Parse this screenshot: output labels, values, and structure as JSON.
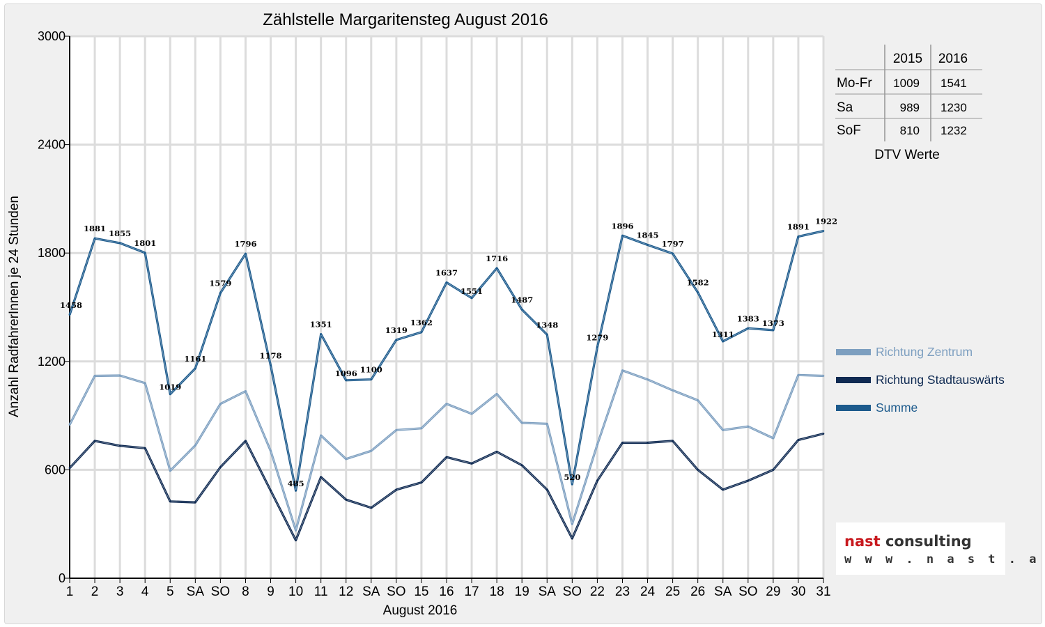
{
  "chart_data": {
    "type": "line",
    "title": "Zählstelle Margaritensteg August 2016",
    "xlabel": "August 2016",
    "ylabel": "Anzahl RadfahrerInnen je 24 Stunden",
    "ylim": [
      0,
      3000
    ],
    "yticks": [
      0,
      600,
      1200,
      1800,
      2400,
      3000
    ],
    "grid": true,
    "legend_position": "right",
    "categories": [
      "1",
      "2",
      "3",
      "4",
      "5",
      "SA",
      "SO",
      "8",
      "9",
      "10",
      "11",
      "12",
      "SA",
      "SO",
      "15",
      "16",
      "17",
      "18",
      "19",
      "SA",
      "SO",
      "22",
      "23",
      "24",
      "25",
      "26",
      "SA",
      "SO",
      "29",
      "30",
      "31"
    ],
    "red_categories": [
      "SO",
      "15"
    ],
    "red_category_indices": [
      6,
      13,
      14,
      20,
      27
    ],
    "series": [
      {
        "name": "Richtung Zentrum",
        "color": "#7d9fc0",
        "values": [
          850,
          1120,
          1122,
          1080,
          595,
          735,
          965,
          1035,
          705,
          265,
          790,
          660,
          705,
          820,
          830,
          965,
          910,
          1020,
          860,
          855,
          300,
          740,
          1150,
          1100,
          1040,
          985,
          820,
          840,
          775,
          1125,
          1120
        ]
      },
      {
        "name": "Richtung Stadtauswärts",
        "color": "#0f2a52",
        "values": [
          610,
          760,
          733,
          720,
          425,
          420,
          615,
          760,
          485,
          210,
          560,
          435,
          390,
          490,
          530,
          670,
          635,
          700,
          625,
          490,
          220,
          540,
          750,
          750,
          760,
          600,
          490,
          540,
          600,
          765,
          800
        ]
      },
      {
        "name": "Summe",
        "color": "#1c5a8c",
        "values": [
          1458,
          1881,
          1855,
          1801,
          1019,
          1161,
          1579,
          1796,
          1178,
          485,
          1351,
          1096,
          1100,
          1319,
          1362,
          1637,
          1551,
          1716,
          1487,
          1348,
          520,
          1279,
          1896,
          1845,
          1797,
          1582,
          1311,
          1383,
          1373,
          1891,
          1922
        ],
        "data_labels": [
          "1458",
          "1881",
          "1855",
          "1801",
          "1019",
          "1161",
          "1579",
          "1796",
          "1178",
          "485",
          "1351",
          "1096",
          "1100",
          "1319",
          "1362",
          "1637",
          "1551",
          "1716",
          "1487",
          "1348",
          "520",
          "1279",
          "1896",
          "1845",
          "1797",
          "1582",
          "1311",
          "1383",
          "1373",
          "1891",
          "1922"
        ]
      }
    ]
  },
  "dtv_table": {
    "caption": "DTV Werte",
    "headers": [
      "",
      "2015",
      "2016"
    ],
    "rows": [
      [
        "Mo-Fr",
        "1009",
        "1541"
      ],
      [
        "Sa",
        "989",
        "1230"
      ],
      [
        "SoF",
        "810",
        "1232"
      ]
    ]
  },
  "logo": {
    "name_part1": "nast",
    "name_part2": " consulting",
    "url": "w w w . n a s t . a t",
    "accent_color": "#c8191e",
    "text_color": "#333333"
  }
}
